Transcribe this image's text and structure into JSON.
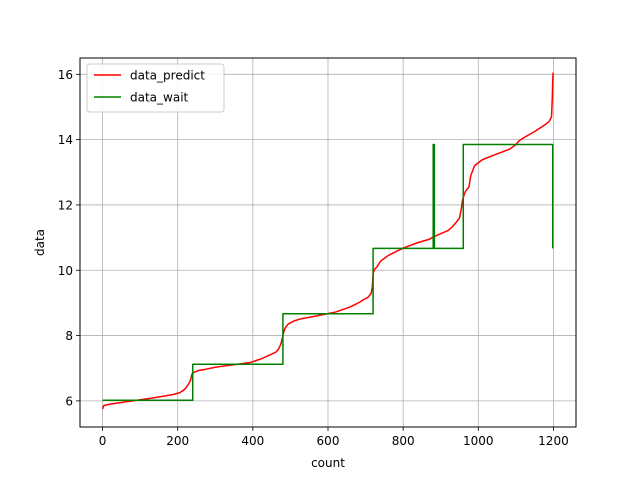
{
  "chart_data": {
    "type": "line",
    "title": "",
    "xlabel": "count",
    "ylabel": "data",
    "xlim": [
      -60,
      1260
    ],
    "ylim": [
      5.2,
      16.5
    ],
    "xticks": [
      0,
      200,
      400,
      600,
      800,
      1000,
      1200
    ],
    "yticks": [
      6,
      8,
      10,
      12,
      14,
      16
    ],
    "xtick_labels": [
      "0",
      "200",
      "400",
      "600",
      "800",
      "1000",
      "1200"
    ],
    "ytick_labels": [
      "6",
      "8",
      "10",
      "12",
      "14",
      "16"
    ],
    "grid": true,
    "legend_position": "top-left",
    "series": [
      {
        "name": "data_predict",
        "color": "#ff0000",
        "x": [
          0,
          3,
          8,
          20,
          50,
          80,
          110,
          150,
          190,
          205,
          215,
          222,
          228,
          233,
          236,
          238,
          240,
          245,
          255,
          275,
          300,
          330,
          360,
          395,
          410,
          425,
          440,
          452,
          462,
          468,
          473,
          476,
          478,
          480,
          482,
          485,
          488,
          495,
          510,
          530,
          560,
          590,
          620,
          640,
          660,
          672,
          684,
          692,
          698,
          705,
          710,
          715,
          718,
          720,
          724,
          730,
          740,
          760,
          800,
          840,
          870,
          880,
          900,
          920,
          930,
          940,
          950,
          955,
          958,
          962,
          966,
          970,
          975,
          980,
          990,
          1010,
          1040,
          1070,
          1085,
          1100,
          1110,
          1130,
          1150,
          1170,
          1180,
          1188,
          1193,
          1195,
          1197,
          1198,
          1199
        ],
        "y": [
          5.75,
          5.85,
          5.87,
          5.9,
          5.95,
          6.0,
          6.05,
          6.12,
          6.2,
          6.25,
          6.32,
          6.4,
          6.5,
          6.6,
          6.72,
          6.82,
          6.85,
          6.88,
          6.93,
          6.97,
          7.03,
          7.08,
          7.12,
          7.18,
          7.24,
          7.3,
          7.38,
          7.44,
          7.5,
          7.58,
          7.7,
          7.8,
          7.9,
          8.0,
          8.1,
          8.2,
          8.27,
          8.36,
          8.45,
          8.52,
          8.58,
          8.65,
          8.72,
          8.8,
          8.88,
          8.95,
          9.02,
          9.08,
          9.12,
          9.16,
          9.22,
          9.3,
          9.5,
          9.9,
          10.03,
          10.1,
          10.28,
          10.45,
          10.68,
          10.85,
          10.95,
          11.02,
          11.12,
          11.22,
          11.32,
          11.45,
          11.6,
          11.9,
          12.15,
          12.3,
          12.42,
          12.48,
          12.55,
          12.9,
          13.2,
          13.38,
          13.52,
          13.65,
          13.72,
          13.85,
          13.98,
          14.12,
          14.25,
          14.4,
          14.48,
          14.55,
          14.65,
          14.72,
          15.3,
          15.8,
          16.05
        ]
      },
      {
        "name": "data_wait",
        "color": "#008000",
        "x": [
          0,
          240,
          240,
          480,
          480,
          720,
          720,
          880,
          880,
          881,
          881,
          882,
          882,
          883,
          883,
          960,
          960,
          1198,
          1198
        ],
        "y": [
          6.02,
          6.02,
          7.12,
          7.12,
          8.67,
          8.67,
          10.67,
          10.67,
          13.85,
          13.85,
          10.67,
          10.67,
          13.85,
          13.85,
          10.67,
          10.67,
          13.85,
          13.85,
          10.67
        ]
      }
    ]
  }
}
